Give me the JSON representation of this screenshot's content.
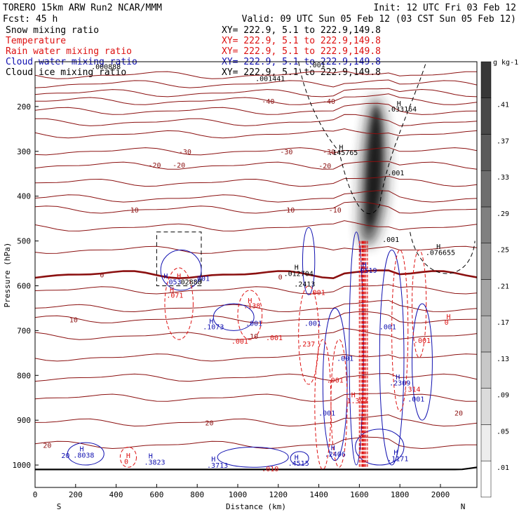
{
  "header": {
    "title": "TORERO  15km ARW   Run2   NCAR/MMM",
    "init": "Init: 12 UTC Fri 03 Feb 12",
    "fcst": "Fcst:   45 h",
    "valid": "Valid: 09 UTC Sun 05 Feb 12 (03 CST Sun 05 Feb 12)"
  },
  "colors": {
    "snow": "#000000",
    "temperature": "#8b1010",
    "rain": "#dd1111",
    "cloud_water": "#1010b0",
    "cloud_ice": "#000000",
    "ground": "#000000"
  },
  "legend": [
    {
      "name": "Snow mixing ratio",
      "xy": "XY= 222.9,  5.1 to 222.9,149.8",
      "color": "#000000"
    },
    {
      "name": "Temperature",
      "xy": "XY= 222.9,  5.1 to 222.9,149.8",
      "color": "#dd1111"
    },
    {
      "name": "Rain water mixing ratio",
      "xy": "XY= 222.9,  5.1 to 222.9,149.8",
      "color": "#dd1111"
    },
    {
      "name": "Cloud water mixing ratio",
      "xy": "XY= 222.9,  5.1 to 222.9,149.8",
      "color": "#1010b0"
    },
    {
      "name": "Cloud ice mixing ratio",
      "xy": "XY= 222.9,  5.1 to 222.9,149.8",
      "color": "#000000"
    }
  ],
  "chart_data": {
    "type": "contour cross-section",
    "xlabel": "Distance (km)",
    "ylabel": "Pressure (hPa)",
    "xlim": [
      0,
      2180
    ],
    "ylim": [
      1050,
      100
    ],
    "x_ticks": [
      "0",
      "200",
      "400",
      "600",
      "800",
      "1000",
      "1200",
      "1400",
      "1600",
      "1800",
      "2000"
    ],
    "y_ticks": [
      "200",
      "300",
      "400",
      "500",
      "600",
      "700",
      "800",
      "900",
      "1000"
    ],
    "left_end": "S",
    "right_end": "N",
    "colorbar": {
      "unit": "g kg-1",
      "labels": [
        ".01",
        ".05",
        ".09",
        ".13",
        ".17",
        ".21",
        ".25",
        ".29",
        ".33",
        ".37",
        ".41"
      ]
    },
    "temperature_contours": [
      {
        "label": "-40",
        "x": 1150,
        "p": 188
      },
      {
        "label": "-40",
        "x": 1450,
        "p": 188
      },
      {
        "label": "-30",
        "x": 740,
        "p": 300
      },
      {
        "label": "-30",
        "x": 1240,
        "p": 300
      },
      {
        "label": "-30",
        "x": 1450,
        "p": 300
      },
      {
        "label": "-20",
        "x": 590,
        "p": 330
      },
      {
        "label": "-20",
        "x": 710,
        "p": 330
      },
      {
        "label": "-20",
        "x": 1430,
        "p": 332
      },
      {
        "label": "-10",
        "x": 480,
        "p": 430
      },
      {
        "label": "-10",
        "x": 1250,
        "p": 430
      },
      {
        "label": "-10",
        "x": 1480,
        "p": 430
      },
      {
        "label": "0",
        "x": 330,
        "p": 575
      },
      {
        "label": "0",
        "x": 1210,
        "p": 580
      },
      {
        "label": "10",
        "x": 190,
        "p": 675
      },
      {
        "label": "10",
        "x": 1080,
        "p": 712
      },
      {
        "label": "20",
        "x": 860,
        "p": 905
      },
      {
        "label": "20",
        "x": 2090,
        "p": 883
      },
      {
        "label": "20",
        "x": 60,
        "p": 955
      }
    ],
    "annotations": [
      {
        "text": ".001441",
        "x": 1160,
        "p": 137,
        "color": "#000000"
      },
      {
        "text": ".000888",
        "x": 350,
        "p": 110,
        "color": "#000000"
      },
      {
        "text": ".001",
        "x": 1390,
        "p": 106,
        "color": "#000000"
      },
      {
        "text": ".033164",
        "x": 1810,
        "p": 205,
        "color": "#000000"
      },
      {
        "text": "H",
        "x": 1795,
        "p": 192,
        "color": "#000000"
      },
      {
        "text": ".145765",
        "x": 1520,
        "p": 302,
        "color": "#000000"
      },
      {
        "text": "H",
        "x": 1510,
        "p": 290,
        "color": "#000000"
      },
      {
        "text": ".001",
        "x": 1780,
        "p": 347,
        "color": "#000000"
      },
      {
        "text": ".076655",
        "x": 2000,
        "p": 525,
        "color": "#000000"
      },
      {
        "text": "H",
        "x": 1990,
        "p": 512,
        "color": "#000000"
      },
      {
        "text": ".001",
        "x": 1755,
        "p": 496,
        "color": "#000000"
      },
      {
        "text": ".012704",
        "x": 1300,
        "p": 572,
        "color": "#000000"
      },
      {
        "text": "H",
        "x": 1290,
        "p": 558,
        "color": "#000000"
      },
      {
        "text": ".053",
        "x": 680,
        "p": 591,
        "color": "#1010b0"
      },
      {
        "text": ".02888",
        "x": 760,
        "p": 591,
        "color": "#000000"
      },
      {
        "text": "H",
        "x": 645,
        "p": 577,
        "color": "#1010b0"
      },
      {
        "text": "H",
        "x": 710,
        "p": 577,
        "color": "#dd1111"
      },
      {
        "text": ".001",
        "x": 820,
        "p": 583,
        "color": "#1010b0"
      },
      {
        "text": ".071",
        "x": 690,
        "p": 620,
        "color": "#dd1111"
      },
      {
        "text": "H",
        "x": 675,
        "p": 608,
        "color": "#dd1111"
      },
      {
        "text": ".2413",
        "x": 1330,
        "p": 595,
        "color": "#000000"
      },
      {
        "text": ".0519",
        "x": 1635,
        "p": 565,
        "color": "#1010b0"
      },
      {
        "text": "H",
        "x": 1625,
        "p": 552,
        "color": "#1010b0"
      },
      {
        "text": ".001",
        "x": 1390,
        "p": 614,
        "color": "#dd1111"
      },
      {
        "text": ".138",
        "x": 1070,
        "p": 644,
        "color": "#dd1111"
      },
      {
        "text": "H",
        "x": 1060,
        "p": 632,
        "color": "#dd1111"
      },
      {
        "text": ".1073",
        "x": 880,
        "p": 691,
        "color": "#1010b0"
      },
      {
        "text": "H",
        "x": 870,
        "p": 678,
        "color": "#1010b0"
      },
      {
        "text": ".001",
        "x": 1080,
        "p": 683,
        "color": "#1010b0"
      },
      {
        "text": ".001",
        "x": 1010,
        "p": 723,
        "color": "#dd1111"
      },
      {
        "text": ".001",
        "x": 1180,
        "p": 715,
        "color": "#dd1111"
      },
      {
        "text": ".001",
        "x": 1370,
        "p": 683,
        "color": "#1010b0"
      },
      {
        "text": ".237",
        "x": 1340,
        "p": 729,
        "color": "#dd1111"
      },
      {
        "text": ".001",
        "x": 1740,
        "p": 691,
        "color": "#1010b0"
      },
      {
        "text": ".001",
        "x": 1910,
        "p": 721,
        "color": "#dd1111"
      },
      {
        "text": "H",
        "x": 2040,
        "p": 668,
        "color": "#dd1111"
      },
      {
        "text": "0",
        "x": 2030,
        "p": 681,
        "color": "#dd1111"
      },
      {
        "text": ".001",
        "x": 1530,
        "p": 761,
        "color": "#1010b0"
      },
      {
        "text": ".001",
        "x": 1480,
        "p": 810,
        "color": "#dd1111"
      },
      {
        "text": ".2309",
        "x": 1800,
        "p": 816,
        "color": "#1010b0"
      },
      {
        "text": "H",
        "x": 1790,
        "p": 803,
        "color": "#1010b0"
      },
      {
        "text": ".314",
        "x": 1860,
        "p": 830,
        "color": "#dd1111"
      },
      {
        "text": ".001",
        "x": 1880,
        "p": 852,
        "color": "#1010b0"
      },
      {
        "text": "1.393",
        "x": 1590,
        "p": 856,
        "color": "#dd1111"
      },
      {
        "text": "H",
        "x": 1570,
        "p": 843,
        "color": "#dd1111"
      },
      {
        "text": ".001",
        "x": 1440,
        "p": 883,
        "color": "#1010b0"
      },
      {
        "text": ".8038",
        "x": 240,
        "p": 977,
        "color": "#1010b0"
      },
      {
        "text": "H",
        "x": 230,
        "p": 963,
        "color": "#1010b0"
      },
      {
        "text": "20",
        "x": 150,
        "p": 978,
        "color": "#1010b0"
      },
      {
        "text": "H",
        "x": 460,
        "p": 978,
        "color": "#dd1111"
      },
      {
        "text": "0",
        "x": 450,
        "p": 991,
        "color": "#dd1111"
      },
      {
        "text": ".3823",
        "x": 590,
        "p": 993,
        "color": "#1010b0"
      },
      {
        "text": "H",
        "x": 570,
        "p": 979,
        "color": "#1010b0"
      },
      {
        "text": ".3713",
        "x": 900,
        "p": 1000,
        "color": "#1010b0"
      },
      {
        "text": "H",
        "x": 880,
        "p": 986,
        "color": "#1010b0"
      },
      {
        "text": ".4515",
        "x": 1300,
        "p": 995,
        "color": "#1010b0"
      },
      {
        "text": "H",
        "x": 1290,
        "p": 982,
        "color": "#1010b0"
      },
      {
        "text": ".010",
        "x": 1160,
        "p": 1008,
        "color": "#dd1111"
      },
      {
        "text": ".2406",
        "x": 1480,
        "p": 975,
        "color": "#1010b0"
      },
      {
        "text": "H",
        "x": 1470,
        "p": 961,
        "color": "#1010b0"
      },
      {
        "text": ".1171",
        "x": 1790,
        "p": 985,
        "color": "#1010b0"
      },
      {
        "text": "H",
        "x": 1780,
        "p": 971,
        "color": "#1010b0"
      }
    ]
  }
}
